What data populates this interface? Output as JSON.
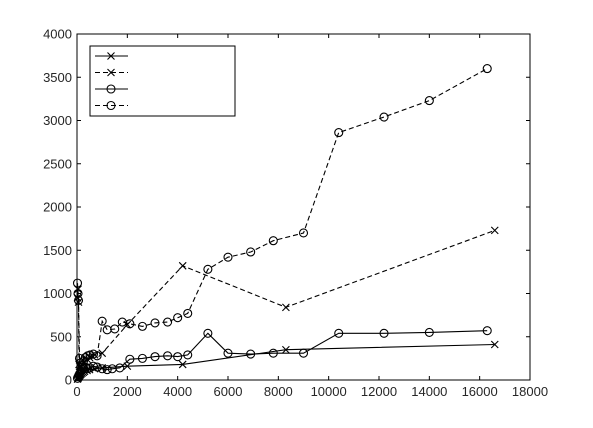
{
  "chart_data": {
    "type": "line",
    "title": "",
    "xlabel": "",
    "ylabel": "",
    "xlim": [
      0,
      18000
    ],
    "ylim": [
      0,
      4000
    ],
    "xticks": [
      "0",
      "2000",
      "4000",
      "6000",
      "8000",
      "10000",
      "12000",
      "14000",
      "16000",
      "18000"
    ],
    "yticks": [
      "0",
      "500",
      "1000",
      "1500",
      "2000",
      "2500",
      "3000",
      "3500",
      "4000"
    ],
    "grid": false,
    "legend": {
      "position": "top-left",
      "entries": [
        "",
        "",
        "",
        ""
      ]
    },
    "series": [
      {
        "marker": "x",
        "line": "solid",
        "points": [
          [
            20,
            10
          ],
          [
            40,
            20
          ],
          [
            60,
            30
          ],
          [
            80,
            40
          ],
          [
            100,
            50
          ],
          [
            130,
            60
          ],
          [
            160,
            70
          ],
          [
            200,
            80
          ],
          [
            250,
            90
          ],
          [
            300,
            100
          ],
          [
            400,
            110
          ],
          [
            500,
            120
          ],
          [
            700,
            130
          ],
          [
            1000,
            140
          ],
          [
            2000,
            160
          ],
          [
            4200,
            180
          ],
          [
            8300,
            350
          ],
          [
            16600,
            410
          ]
        ]
      },
      {
        "marker": "x",
        "line": "dashed",
        "points": [
          [
            20,
            950
          ],
          [
            40,
            1050
          ],
          [
            60,
            900
          ],
          [
            80,
            180
          ],
          [
            100,
            160
          ],
          [
            130,
            140
          ],
          [
            160,
            160
          ],
          [
            200,
            180
          ],
          [
            250,
            200
          ],
          [
            300,
            210
          ],
          [
            400,
            240
          ],
          [
            500,
            260
          ],
          [
            700,
            290
          ],
          [
            1000,
            310
          ],
          [
            2000,
            640
          ],
          [
            4200,
            1320
          ],
          [
            8300,
            840
          ],
          [
            16600,
            1730
          ]
        ]
      },
      {
        "marker": "o",
        "line": "solid",
        "points": [
          [
            20,
            20
          ],
          [
            50,
            40
          ],
          [
            80,
            60
          ],
          [
            120,
            80
          ],
          [
            160,
            100
          ],
          [
            200,
            120
          ],
          [
            260,
            140
          ],
          [
            330,
            150
          ],
          [
            420,
            130
          ],
          [
            520,
            140
          ],
          [
            650,
            160
          ],
          [
            800,
            150
          ],
          [
            1000,
            130
          ],
          [
            1200,
            120
          ],
          [
            1400,
            130
          ],
          [
            1700,
            140
          ],
          [
            2100,
            240
          ],
          [
            2600,
            250
          ],
          [
            3100,
            270
          ],
          [
            3600,
            280
          ],
          [
            4000,
            270
          ],
          [
            4400,
            290
          ],
          [
            5200,
            540
          ],
          [
            6000,
            310
          ],
          [
            6900,
            300
          ],
          [
            7800,
            310
          ],
          [
            9000,
            310
          ],
          [
            10400,
            540
          ],
          [
            12200,
            540
          ],
          [
            14000,
            550
          ],
          [
            16300,
            570
          ]
        ]
      },
      {
        "marker": "o",
        "line": "dashed",
        "points": [
          [
            20,
            1120
          ],
          [
            40,
            1000
          ],
          [
            60,
            920
          ],
          [
            100,
            250
          ],
          [
            150,
            200
          ],
          [
            200,
            170
          ],
          [
            260,
            220
          ],
          [
            330,
            260
          ],
          [
            420,
            280
          ],
          [
            520,
            290
          ],
          [
            650,
            300
          ],
          [
            800,
            280
          ],
          [
            1000,
            680
          ],
          [
            1200,
            580
          ],
          [
            1500,
            590
          ],
          [
            1800,
            670
          ],
          [
            2100,
            650
          ],
          [
            2600,
            620
          ],
          [
            3100,
            660
          ],
          [
            3600,
            670
          ],
          [
            4000,
            720
          ],
          [
            4400,
            770
          ],
          [
            5200,
            1280
          ],
          [
            6000,
            1420
          ],
          [
            6900,
            1480
          ],
          [
            7800,
            1610
          ],
          [
            9000,
            1700
          ],
          [
            10400,
            2860
          ],
          [
            12200,
            3040
          ],
          [
            14000,
            3230
          ],
          [
            16300,
            3600
          ]
        ]
      }
    ]
  }
}
